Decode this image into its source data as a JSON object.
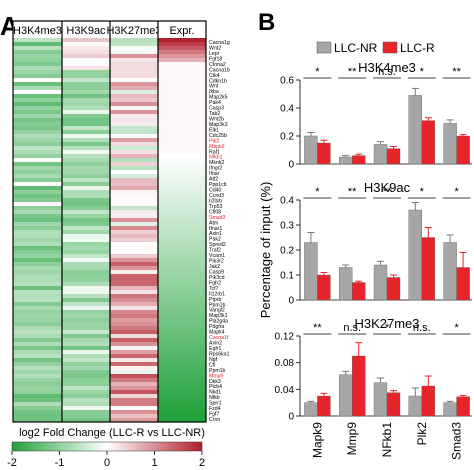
{
  "colors": {
    "green": "#22a23c",
    "white": "#ffffff",
    "red": "#b21f2c",
    "llc_nr": "#a6a6a6",
    "llc_r": "#e8242a"
  },
  "panel_a": {
    "letter": "A",
    "column_headers": [
      "H3K4me3",
      "H3K9ac",
      "H3K27me3",
      "Expr."
    ],
    "gene_labels": [
      {
        "name": "Cacna1g",
        "red": false
      },
      {
        "name": "Wnt2",
        "red": false
      },
      {
        "name": "Lepr",
        "red": false
      },
      {
        "name": "Fgf18",
        "red": false
      },
      {
        "name": "Ctnna2",
        "red": false
      },
      {
        "name": "Cacna1b",
        "red": false
      },
      {
        "name": "Ctk4",
        "red": false
      },
      {
        "name": "Cdkn1b",
        "red": false
      },
      {
        "name": "Wnt",
        "red": false
      },
      {
        "name": "Ikba",
        "red": false
      },
      {
        "name": "Map2k5",
        "red": false
      },
      {
        "name": "Pak4",
        "red": false
      },
      {
        "name": "Casp3",
        "red": false
      },
      {
        "name": "Tab2",
        "red": false
      },
      {
        "name": "Wnt2b",
        "red": false
      },
      {
        "name": "Map3k3",
        "red": false
      },
      {
        "name": "Elk1",
        "red": false
      },
      {
        "name": "Cdc25b",
        "red": false
      },
      {
        "name": "Plk2",
        "red": true
      },
      {
        "name": "Mapk9",
        "red": true
      },
      {
        "name": "Raf1",
        "red": false
      },
      {
        "name": "Nfkb1",
        "red": true
      },
      {
        "name": "Mknk2",
        "red": false
      },
      {
        "name": "Ifngr2",
        "red": false
      },
      {
        "name": "Ifnar",
        "red": false
      },
      {
        "name": "Atf2",
        "red": false
      },
      {
        "name": "Ppp1cb",
        "red": false
      },
      {
        "name": "Cd40",
        "red": false
      },
      {
        "name": "Ccnd3",
        "red": false
      },
      {
        "name": "Il20rb",
        "red": false
      },
      {
        "name": "Trp53",
        "red": false
      },
      {
        "name": "Cfl08",
        "red": false
      },
      {
        "name": "Smad3",
        "red": true
      },
      {
        "name": "Atm",
        "red": false
      },
      {
        "name": "Ifnar1",
        "red": false
      },
      {
        "name": "Axin1",
        "red": false
      },
      {
        "name": "Pak2",
        "red": false
      },
      {
        "name": "Spred2",
        "red": false
      },
      {
        "name": "Traf2",
        "red": false
      },
      {
        "name": "Vcam1",
        "red": false
      },
      {
        "name": "Pik3r2",
        "red": false
      },
      {
        "name": "Jak2",
        "red": false
      },
      {
        "name": "Casp9",
        "red": false
      },
      {
        "name": "Pik3cd",
        "red": false
      },
      {
        "name": "Fgfr2",
        "red": false
      },
      {
        "name": "Tcf7",
        "red": false
      },
      {
        "name": "Il12rb1",
        "red": false
      },
      {
        "name": "Ptprb",
        "red": false
      },
      {
        "name": "Ppm1b",
        "red": false
      },
      {
        "name": "Vangl2",
        "red": false
      },
      {
        "name": "Map3k1",
        "red": false
      },
      {
        "name": "Pla2g4a",
        "red": false
      },
      {
        "name": "Pdgfra",
        "red": false
      },
      {
        "name": "Mapk4",
        "red": false
      },
      {
        "name": "Cacna1f",
        "red": true
      },
      {
        "name": "Axin2",
        "red": false
      },
      {
        "name": "Egfr1",
        "red": false
      },
      {
        "name": "Rps6ka1",
        "red": false
      },
      {
        "name": "Ngf",
        "red": false
      },
      {
        "name": "Cfl",
        "red": false
      },
      {
        "name": "Ppm1b",
        "red": false
      },
      {
        "name": "Mmp9",
        "red": true
      },
      {
        "name": "Dkk3",
        "red": false
      },
      {
        "name": "Plcb4",
        "red": false
      },
      {
        "name": "Nkd1",
        "red": false
      },
      {
        "name": "Nfkb",
        "red": false
      },
      {
        "name": "Sprr1",
        "red": false
      },
      {
        "name": "Fzd4",
        "red": false
      },
      {
        "name": "Fgf7",
        "red": false
      },
      {
        "name": "Crnn",
        "red": false
      }
    ],
    "colorbar": {
      "title": "log2 Fold Change (LLC-R vs LLC-NR)",
      "ticks": [
        "-2",
        "-1",
        "0",
        "1",
        "2"
      ]
    }
  },
  "panel_b": {
    "letter": "B",
    "ylabel": "Percentage of input (%)",
    "legend": [
      "LLC-NR",
      "LLC-R"
    ]
  },
  "chart_data": [
    {
      "type": "bar",
      "title": "H3K4me3",
      "categories": [
        "Mapk9",
        "Mmp9",
        "NFkb1",
        "Plk2",
        "Smad3"
      ],
      "ylim": [
        0,
        0.6
      ],
      "yticks": [
        "0",
        "0.2",
        "0.4",
        "0.6"
      ],
      "series": [
        {
          "name": "LLC-NR",
          "values": [
            0.2,
            0.05,
            0.14,
            0.49,
            0.29
          ],
          "errors": [
            0.025,
            0.01,
            0.02,
            0.05,
            0.025
          ]
        },
        {
          "name": "LLC-R",
          "values": [
            0.15,
            0.06,
            0.11,
            0.31,
            0.2
          ],
          "errors": [
            0.02,
            0.01,
            0.015,
            0.02,
            0.01
          ]
        }
      ],
      "significance": [
        "*",
        "**",
        "n.s.",
        "*",
        "**"
      ]
    },
    {
      "type": "bar",
      "title": "H3K9ac",
      "categories": [
        "Mapk9",
        "Mmp9",
        "NFkb1",
        "Plk2",
        "Smad3"
      ],
      "ylim": [
        0,
        0.4
      ],
      "yticks": [
        "0",
        "0.1",
        "0.2",
        "0.3",
        "0.4"
      ],
      "series": [
        {
          "name": "LLC-NR",
          "values": [
            0.23,
            0.13,
            0.14,
            0.36,
            0.23
          ],
          "errors": [
            0.04,
            0.01,
            0.015,
            0.03,
            0.03
          ]
        },
        {
          "name": "LLC-R",
          "values": [
            0.1,
            0.07,
            0.09,
            0.25,
            0.13
          ],
          "errors": [
            0.01,
            0.005,
            0.01,
            0.04,
            0.06
          ]
        }
      ],
      "significance": [
        "*",
        "**",
        "**",
        "*",
        "*"
      ]
    },
    {
      "type": "bar",
      "title": "H3K27me3",
      "categories": [
        "Mapk9",
        "Mmp9",
        "NFkb1",
        "Plk2",
        "Smad3"
      ],
      "ylim": [
        0,
        0.12
      ],
      "yticks": [
        "0",
        "0.04",
        "0.08",
        "0.12"
      ],
      "series": [
        {
          "name": "LLC-NR",
          "values": [
            0.02,
            0.062,
            0.05,
            0.03,
            0.02
          ],
          "errors": [
            0.002,
            0.005,
            0.007,
            0.012,
            0.002
          ]
        },
        {
          "name": "LLC-R",
          "values": [
            0.03,
            0.09,
            0.035,
            0.045,
            0.029
          ],
          "errors": [
            0.004,
            0.02,
            0.003,
            0.015,
            0.002
          ]
        }
      ],
      "significance": [
        "**",
        "n.s.",
        "*",
        "n.s.",
        "*"
      ]
    }
  ]
}
